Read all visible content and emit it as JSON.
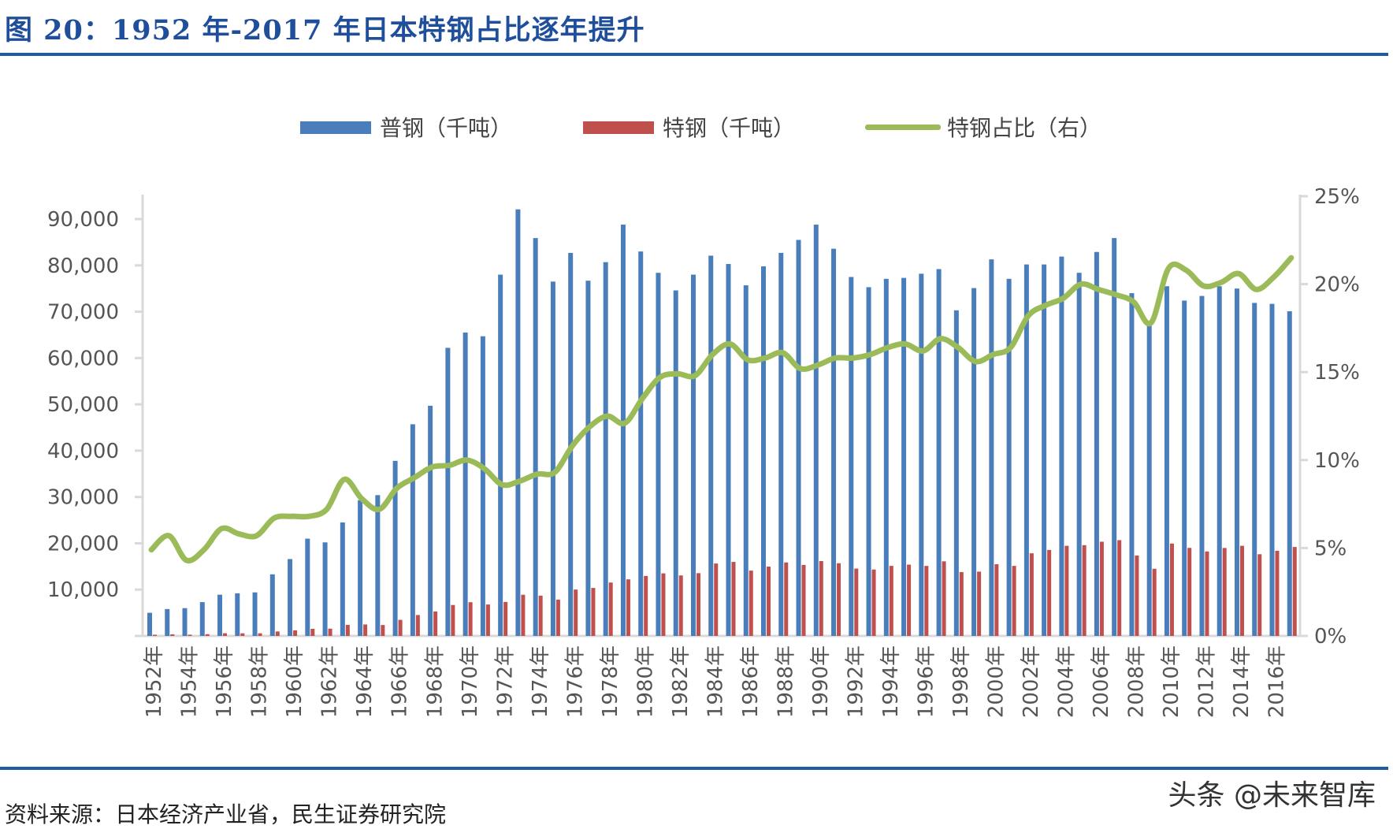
{
  "title": "图 20：1952 年-2017 年日本特钢占比逐年提升",
  "source": "资料来源：日本经济产业省，民生证券研究院",
  "watermark": "头条 @未来智库",
  "chart_data": {
    "type": "bar+line",
    "categories": [
      "1952年",
      "1953年",
      "1954年",
      "1955年",
      "1956年",
      "1957年",
      "1958年",
      "1959年",
      "1960年",
      "1961年",
      "1962年",
      "1963年",
      "1964年",
      "1965年",
      "1966年",
      "1967年",
      "1968年",
      "1969年",
      "1970年",
      "1971年",
      "1972年",
      "1973年",
      "1974年",
      "1975年",
      "1976年",
      "1977年",
      "1978年",
      "1979年",
      "1980年",
      "1981年",
      "1982年",
      "1983年",
      "1984年",
      "1985年",
      "1986年",
      "1987年",
      "1988年",
      "1989年",
      "1990年",
      "1991年",
      "1992年",
      "1993年",
      "1994年",
      "1995年",
      "1996年",
      "1997年",
      "1998年",
      "1999年",
      "2000年",
      "2001年",
      "2002年",
      "2003年",
      "2004年",
      "2005年",
      "2006年",
      "2007年",
      "2008年",
      "2009年",
      "2010年",
      "2011年",
      "2012年",
      "2013年",
      "2014年",
      "2015年",
      "2016年",
      "2017年"
    ],
    "series": [
      {
        "name": "普钢（千吨）",
        "type": "bar",
        "axis": "left",
        "color": "#4a7ebb",
        "values": [
          5000,
          5800,
          6000,
          7300,
          8900,
          9200,
          9400,
          13300,
          16600,
          21000,
          20200,
          24500,
          29300,
          30400,
          37800,
          45700,
          49700,
          62200,
          65500,
          64700,
          78000,
          92100,
          85900,
          76500,
          82700,
          76700,
          80700,
          88800,
          83000,
          78400,
          74600,
          78000,
          82100,
          80300,
          75700,
          79800,
          82700,
          85500,
          88800,
          83600,
          77500,
          75300,
          77100,
          77300,
          78200,
          79200,
          70300,
          75100,
          81300,
          77100,
          80200,
          80200,
          81900,
          78400,
          82900,
          85900,
          74000,
          67000,
          75500,
          72400,
          73400,
          75500,
          75000,
          71900,
          71700,
          70100
        ]
      },
      {
        "name": "特钢（千吨）",
        "type": "bar",
        "axis": "left",
        "color": "#c0504d",
        "values": [
          260,
          350,
          270,
          380,
          580,
          570,
          570,
          960,
          1210,
          1530,
          1570,
          2390,
          2480,
          2360,
          3470,
          4520,
          5280,
          6680,
          7280,
          6790,
          7340,
          8890,
          8700,
          7840,
          10010,
          10360,
          11530,
          12220,
          12950,
          13510,
          13060,
          13550,
          15640,
          15980,
          14100,
          14970,
          15870,
          15330,
          16160,
          15690,
          14540,
          14340,
          15120,
          15390,
          15120,
          16110,
          13790,
          13880,
          15490,
          15120,
          17840,
          18570,
          19460,
          19600,
          20340,
          20680,
          17360,
          14500,
          19950,
          19010,
          18240,
          18990,
          19460,
          17640,
          18380,
          19200
        ]
      },
      {
        "name": "特钢占比（右）",
        "type": "line",
        "axis": "right",
        "color": "#9bbb59",
        "values": [
          4.9,
          5.7,
          4.3,
          4.9,
          6.1,
          5.8,
          5.7,
          6.7,
          6.8,
          6.8,
          7.2,
          8.9,
          7.8,
          7.2,
          8.4,
          9.0,
          9.6,
          9.7,
          10.0,
          9.5,
          8.6,
          8.8,
          9.2,
          9.3,
          10.8,
          11.9,
          12.5,
          12.1,
          13.5,
          14.7,
          14.9,
          14.8,
          16.0,
          16.6,
          15.7,
          15.8,
          16.1,
          15.2,
          15.4,
          15.8,
          15.8,
          16.0,
          16.4,
          16.6,
          16.2,
          16.9,
          16.4,
          15.6,
          16.0,
          16.4,
          18.2,
          18.8,
          19.2,
          20.0,
          19.7,
          19.4,
          19.0,
          17.8,
          20.9,
          20.8,
          19.9,
          20.1,
          20.6,
          19.7,
          20.4,
          21.5
        ]
      }
    ],
    "y_left": {
      "range": [
        0,
        95000
      ],
      "ticks": [
        "10,000",
        "20,000",
        "30,000",
        "40,000",
        "50,000",
        "60,000",
        "70,000",
        "80,000",
        "90,000"
      ],
      "tick_values": [
        10000,
        20000,
        30000,
        40000,
        50000,
        60000,
        70000,
        80000,
        90000
      ]
    },
    "y_right": {
      "range": [
        0,
        25
      ],
      "ticks": [
        "0%",
        "5%",
        "10%",
        "15%",
        "20%",
        "25%"
      ],
      "tick_values": [
        0,
        5,
        10,
        15,
        20,
        25
      ]
    },
    "x_tick_labels_every": 2,
    "legend_position": "top",
    "grid": false
  }
}
